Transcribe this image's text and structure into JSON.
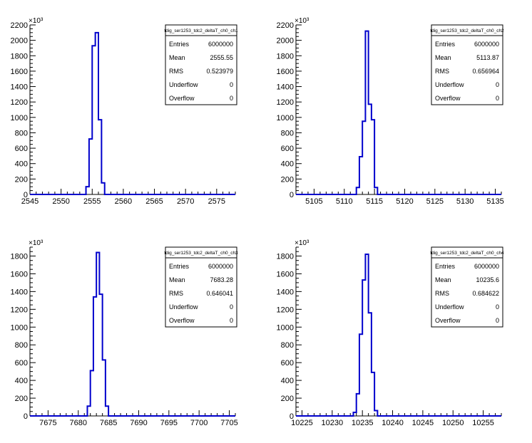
{
  "chart_data": [
    {
      "type": "histogram",
      "title": "tdig_ser1253_tdc2_deltaT_ch0_ch1",
      "exponent_label": "×10³",
      "xlim": [
        2545,
        2578
      ],
      "xticks": [
        2545,
        2550,
        2555,
        2560,
        2565,
        2570,
        2575
      ],
      "ylim": [
        0,
        2200
      ],
      "yticks": [
        0,
        200,
        400,
        600,
        800,
        1000,
        1200,
        1400,
        1600,
        1800,
        2000,
        2200
      ],
      "bins": [
        2553.5,
        2554,
        2554.5,
        2555,
        2555.5,
        2556,
        2556.5,
        2557
      ],
      "values": [
        0,
        100,
        720,
        1930,
        2100,
        970,
        150,
        0
      ],
      "stats": [
        {
          "label": "Entries",
          "value": "6000000"
        },
        {
          "label": "Mean",
          "value": "2555.55"
        },
        {
          "label": "RMS",
          "value": "0.523979"
        },
        {
          "label": "Underflow",
          "value": "0"
        },
        {
          "label": "Overflow",
          "value": "0"
        }
      ]
    },
    {
      "type": "histogram",
      "title": "tdig_ser1253_tdc2_deltaT_ch0_ch2",
      "exponent_label": "×10³",
      "xlim": [
        5102,
        5136
      ],
      "xticks": [
        5105,
        5110,
        5115,
        5120,
        5125,
        5130,
        5135
      ],
      "ylim": [
        0,
        2200
      ],
      "yticks": [
        0,
        200,
        400,
        600,
        800,
        1000,
        1200,
        1400,
        1600,
        1800,
        2000,
        2200
      ],
      "bins": [
        5111.5,
        5112,
        5112.5,
        5113,
        5113.5,
        5114,
        5114.5,
        5115,
        5115.5
      ],
      "values": [
        0,
        90,
        490,
        950,
        2120,
        1170,
        970,
        90,
        0
      ],
      "stats": [
        {
          "label": "Entries",
          "value": "6000000"
        },
        {
          "label": "Mean",
          "value": "5113.87"
        },
        {
          "label": "RMS",
          "value": "0.656964"
        },
        {
          "label": "Underflow",
          "value": "0"
        },
        {
          "label": "Overflow",
          "value": "0"
        }
      ]
    },
    {
      "type": "histogram",
      "title": "tdig_ser1253_tdc2_deltaT_ch0_ch3",
      "exponent_label": "×10³",
      "xlim": [
        7672,
        7706
      ],
      "xticks": [
        7675,
        7680,
        7685,
        7690,
        7695,
        7700,
        7705
      ],
      "ylim": [
        0,
        1900
      ],
      "yticks": [
        0,
        200,
        400,
        600,
        800,
        1000,
        1200,
        1400,
        1600,
        1800
      ],
      "bins": [
        7681,
        7681.5,
        7682,
        7682.5,
        7683,
        7683.5,
        7684,
        7684.5,
        7685
      ],
      "values": [
        0,
        110,
        510,
        1340,
        1840,
        1370,
        630,
        110,
        0
      ],
      "stats": [
        {
          "label": "Entries",
          "value": "6000000"
        },
        {
          "label": "Mean",
          "value": "7683.28"
        },
        {
          "label": "RMS",
          "value": "0.646041"
        },
        {
          "label": "Underflow",
          "value": "0"
        },
        {
          "label": "Overflow",
          "value": "0"
        }
      ]
    },
    {
      "type": "histogram",
      "title": "tdig_ser1253_tdc2_deltaT_ch0_ch4",
      "exponent_label": "×10³",
      "xlim": [
        10224,
        10258
      ],
      "xticks": [
        10225,
        10230,
        10235,
        10240,
        10245,
        10250,
        10255
      ],
      "ylim": [
        0,
        1900
      ],
      "yticks": [
        0,
        200,
        400,
        600,
        800,
        1000,
        1200,
        1400,
        1600,
        1800
      ],
      "bins": [
        10233,
        10233.5,
        10234,
        10234.5,
        10235,
        10235.5,
        10236,
        10236.5,
        10237,
        10237.5
      ],
      "values": [
        0,
        40,
        250,
        920,
        1530,
        1820,
        1160,
        490,
        60,
        0
      ],
      "stats": [
        {
          "label": "Entries",
          "value": "6000000"
        },
        {
          "label": "Mean",
          "value": "10235.6"
        },
        {
          "label": "RMS",
          "value": "0.684622"
        },
        {
          "label": "Underflow",
          "value": "0"
        },
        {
          "label": "Overflow",
          "value": "0"
        }
      ]
    }
  ]
}
